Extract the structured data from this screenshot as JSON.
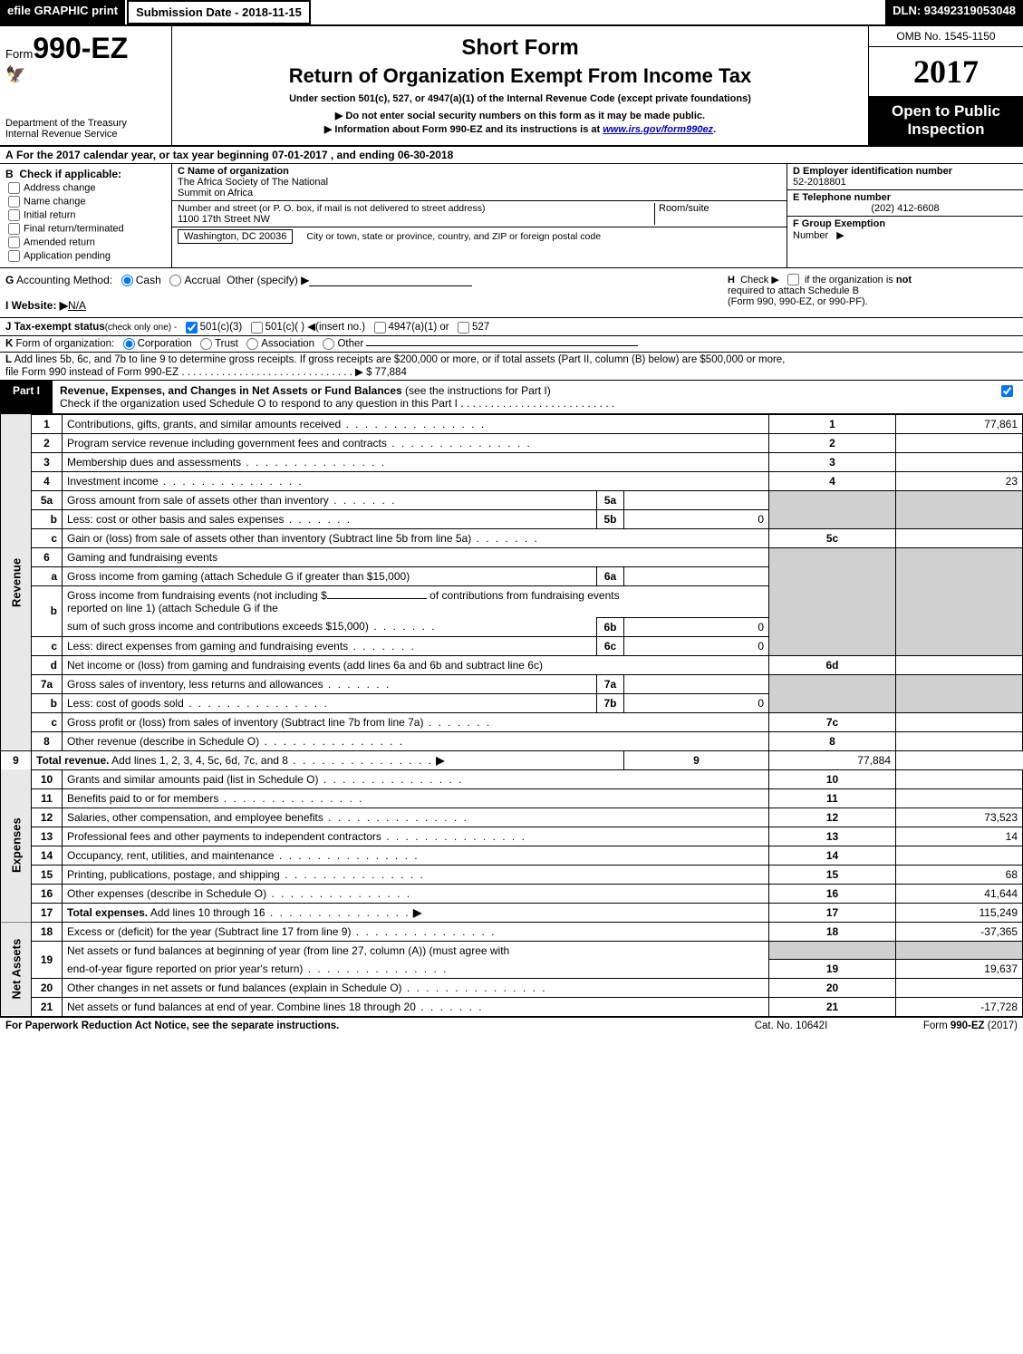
{
  "top": {
    "efile": "efile GRAPHIC print",
    "submission_label": "Submission Date - 2018-11-15",
    "dln": "DLN: 93492319053048"
  },
  "header": {
    "form_prefix": "Form",
    "form_number": "990-EZ",
    "dept1": "Department of the Treasury",
    "dept2": "Internal Revenue Service",
    "title1": "Short Form",
    "title2": "Return of Organization Exempt From Income Tax",
    "subtitle": "Under section 501(c), 527, or 4947(a)(1) of the Internal Revenue Code (except private foundations)",
    "arrow1": "▶ Do not enter social security numbers on this form as it may be made public.",
    "arrow2_pre": "▶ Information about Form 990-EZ and its instructions is at ",
    "arrow2_link": "www.irs.gov/form990ez",
    "arrow2_post": ".",
    "omb": "OMB No. 1545-1150",
    "year": "2017",
    "open": "Open to Public Inspection"
  },
  "a": {
    "prefix": "A",
    "text1": "For the 2017 calendar year, or tax year beginning ",
    "begin": "07-01-2017",
    "mid": ", and ending ",
    "end": "06-30-2018"
  },
  "b": {
    "hdr": "B",
    "label": "Check if applicable:",
    "opts": [
      "Address change",
      "Name change",
      "Initial return",
      "Final return/terminated",
      "Amended return",
      "Application pending"
    ]
  },
  "c": {
    "label": "C Name of organization",
    "org1": "The Africa Society of The National",
    "org2": "Summit on Africa",
    "addr_label": "Number and street (or P. O. box, if mail is not delivered to street address)",
    "addr": "1100 17th Street NW",
    "room_label": "Room/suite",
    "city_label": "City or town, state or province, country, and ZIP or foreign postal code",
    "city": "Washington, DC  20036"
  },
  "d": {
    "label": "D Employer identification number",
    "val": "52-2018801"
  },
  "e": {
    "label": "E Telephone number",
    "val": "(202) 412-6608"
  },
  "f": {
    "label": "F Group Exemption",
    "label2": "Number",
    "arrow": "▶"
  },
  "g": {
    "prefix": "G",
    "text": "Accounting Method:",
    "cash": "Cash",
    "accrual": "Accrual",
    "other": "Other (specify) ▶"
  },
  "h": {
    "prefix": "H",
    "text1": "Check ▶",
    "text2": "if the organization is",
    "not": "not",
    "text3": "required to attach Schedule B",
    "text4": "(Form 990, 990-EZ, or 990-PF)."
  },
  "i": {
    "prefix": "I Website: ▶",
    "val": "N/A"
  },
  "j": {
    "prefix": "J Tax-exempt status",
    "sub": "(check only one) -",
    "opt1": "501(c)(3)",
    "opt2": "501(c)(  )",
    "opt2b": "◀(insert no.)",
    "opt3": "4947(a)(1) or",
    "opt4": "527"
  },
  "k": {
    "prefix": "K",
    "text": "Form of organization:",
    "opts": [
      "Corporation",
      "Trust",
      "Association",
      "Other"
    ]
  },
  "l": {
    "prefix": "L",
    "text1": "Add lines 5b, 6c, and 7b to line 9 to determine gross receipts. If gross receipts are $200,000 or more, or if total assets (Part II, column (B) below) are $500,000 or more,",
    "text2": "file Form 990 instead of Form 990-EZ",
    "dots": ".  .  .  .  .  .  .  .  .  .  .  .  .  .  .  .  .  .  .  .  .  .  .  .  .  .  .  .  .  . ▶",
    "val": "$ 77,884"
  },
  "part1": {
    "tag": "Part I",
    "title": "Revenue, Expenses, and Changes in Net Assets or Fund Balances",
    "sub": "(see the instructions for Part I)",
    "line2": "Check if the organization used Schedule O to respond to any question in this Part I"
  },
  "sections": {
    "revenue": "Revenue",
    "expenses": "Expenses",
    "netassets": "Net Assets"
  },
  "lines": {
    "l1": {
      "no": "1",
      "desc": "Contributions, gifts, grants, and similar amounts received",
      "val": "77,861"
    },
    "l2": {
      "no": "2",
      "desc": "Program service revenue including government fees and contracts",
      "val": ""
    },
    "l3": {
      "no": "3",
      "desc": "Membership dues and assessments",
      "val": ""
    },
    "l4": {
      "no": "4",
      "desc": "Investment income",
      "val": "23"
    },
    "l5a": {
      "no": "5a",
      "desc": "Gross amount from sale of assets other than inventory",
      "inner_lbl": "5a",
      "inner_val": ""
    },
    "l5b": {
      "no": "b",
      "desc": "Less: cost or other basis and sales expenses",
      "inner_lbl": "5b",
      "inner_val": "0"
    },
    "l5c": {
      "no": "c",
      "desc": "Gain or (loss) from sale of assets other than inventory (Subtract line 5b from line 5a)",
      "box": "5c",
      "val": ""
    },
    "l6": {
      "no": "6",
      "desc": "Gaming and fundraising events"
    },
    "l6a": {
      "no": "a",
      "desc": "Gross income from gaming (attach Schedule G if greater than $15,000)",
      "inner_lbl": "6a",
      "inner_val": ""
    },
    "l6b": {
      "no": "b",
      "desc1": "Gross income from fundraising events (not including $",
      "desc2": "of contributions from fundraising events",
      "desc3": "reported on line 1) (attach Schedule G if the",
      "desc4": "sum of such gross income and contributions exceeds $15,000)",
      "inner_lbl": "6b",
      "inner_val": "0"
    },
    "l6c": {
      "no": "c",
      "desc": "Less: direct expenses from gaming and fundraising events",
      "inner_lbl": "6c",
      "inner_val": "0"
    },
    "l6d": {
      "no": "d",
      "desc": "Net income or (loss) from gaming and fundraising events (add lines 6a and 6b and subtract line 6c)",
      "box": "6d",
      "val": ""
    },
    "l7a": {
      "no": "7a",
      "desc": "Gross sales of inventory, less returns and allowances",
      "inner_lbl": "7a",
      "inner_val": ""
    },
    "l7b": {
      "no": "b",
      "desc": "Less: cost of goods sold",
      "inner_lbl": "7b",
      "inner_val": "0"
    },
    "l7c": {
      "no": "c",
      "desc": "Gross profit or (loss) from sales of inventory (Subtract line 7b from line 7a)",
      "box": "7c",
      "val": ""
    },
    "l8": {
      "no": "8",
      "desc": "Other revenue (describe in Schedule O)",
      "val": ""
    },
    "l9": {
      "no": "9",
      "desc": "Total revenue.",
      "desc2": "Add lines 1, 2, 3, 4, 5c, 6d, 7c, and 8",
      "val": "77,884"
    },
    "l10": {
      "no": "10",
      "desc": "Grants and similar amounts paid (list in Schedule O)",
      "val": ""
    },
    "l11": {
      "no": "11",
      "desc": "Benefits paid to or for members",
      "val": ""
    },
    "l12": {
      "no": "12",
      "desc": "Salaries, other compensation, and employee benefits",
      "val": "73,523"
    },
    "l13": {
      "no": "13",
      "desc": "Professional fees and other payments to independent contractors",
      "val": "14"
    },
    "l14": {
      "no": "14",
      "desc": "Occupancy, rent, utilities, and maintenance",
      "val": ""
    },
    "l15": {
      "no": "15",
      "desc": "Printing, publications, postage, and shipping",
      "val": "68"
    },
    "l16": {
      "no": "16",
      "desc": "Other expenses (describe in Schedule O)",
      "val": "41,644"
    },
    "l17": {
      "no": "17",
      "desc": "Total expenses.",
      "desc2": "Add lines 10 through 16",
      "val": "115,249"
    },
    "l18": {
      "no": "18",
      "desc": "Excess or (deficit) for the year (Subtract line 17 from line 9)",
      "val": "-37,365"
    },
    "l19": {
      "no": "19",
      "desc": "Net assets or fund balances at beginning of year (from line 27, column (A)) (must agree with",
      "desc2": "end-of-year figure reported on prior year's return)",
      "val": "19,637"
    },
    "l20": {
      "no": "20",
      "desc": "Other changes in net assets or fund balances (explain in Schedule O)",
      "val": ""
    },
    "l21": {
      "no": "21",
      "desc": "Net assets or fund balances at end of year. Combine lines 18 through 20",
      "val": "-17,728"
    }
  },
  "footer": {
    "left": "For Paperwork Reduction Act Notice, see the separate instructions.",
    "mid": "Cat. No. 10642I",
    "right_pre": "Form ",
    "right_bold": "990-EZ",
    "right_post": " (2017)"
  }
}
